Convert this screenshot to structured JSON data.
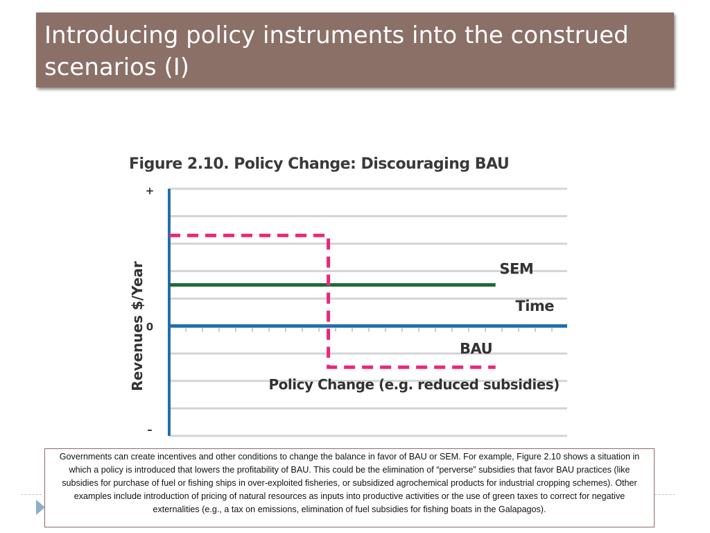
{
  "slide": {
    "title": "Introducing policy instruments into the construed scenarios (I)"
  },
  "chart_data": {
    "type": "line",
    "title": "Figure 2.10. Policy Change: Discouraging BAU",
    "ylabel": "Revenues  $/Year",
    "y_ticks": [
      "+",
      "0",
      "–"
    ],
    "ylim": [
      -4,
      5
    ],
    "xlim": [
      0,
      10
    ],
    "series": [
      {
        "name": "SEM",
        "color": "#1e6b35",
        "style": "solid",
        "x": [
          0,
          8.2
        ],
        "y": [
          1.5,
          1.5
        ]
      },
      {
        "name": "BAU",
        "color": "#e8287a",
        "style": "dashed",
        "x": [
          0,
          4,
          4,
          8.2
        ],
        "y": [
          3.3,
          3.3,
          -1.5,
          -1.5
        ]
      },
      {
        "name": "Time",
        "color": "#1f6fae",
        "style": "solid",
        "x": [
          0,
          10
        ],
        "y": [
          0,
          0
        ]
      }
    ],
    "annotations": [
      {
        "text": "SEM",
        "x": 8.3,
        "y": 1.9
      },
      {
        "text": "Time",
        "x": 8.7,
        "y": 0.55
      },
      {
        "text": "BAU",
        "x": 7.3,
        "y": -1.0
      },
      {
        "text": "Policy Change (e.g. reduced subsidies)",
        "x": 2.5,
        "y": -2.3
      }
    ],
    "grid": true
  },
  "caption": {
    "text": "Governments can create incentives and other conditions to change the balance in favor of BAU or SEM. For example, Figure 2.10 shows a situation in which a policy is introduced that lowers the profitability of BAU. This could be the elimination of “perverse” subsidies that favor BAU practices (like subsidies for purchase of fuel or fishing ships in over-exploited fisheries, or subsidized agrochemical products for industrial cropping schemes). Other examples include introduction of pricing of natural resources as inputs into productive activities or the use of green taxes to correct for negative externalities (e.g., a tax on emissions, elimination of fuel subsidies for fishing boats in the Galapagos)."
  }
}
